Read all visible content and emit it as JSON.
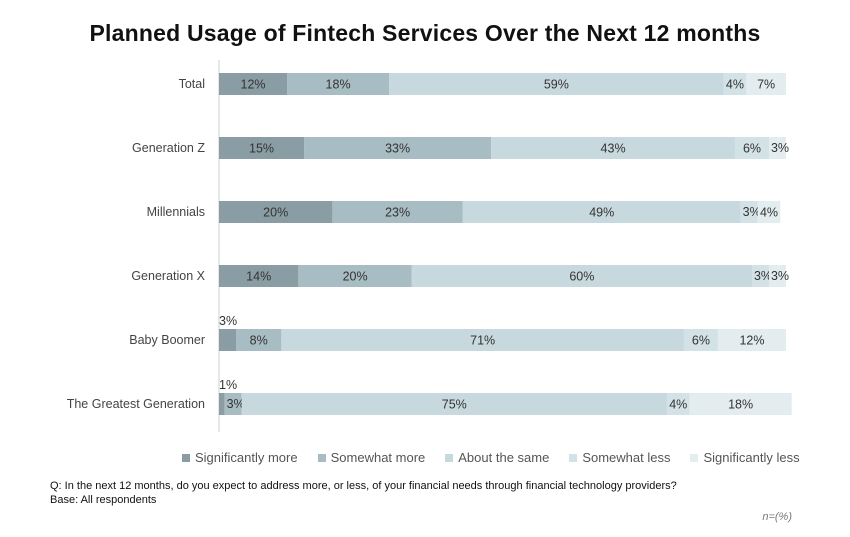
{
  "chart_data": {
    "type": "bar",
    "orientation": "horizontal",
    "stacked": true,
    "title": "Planned Usage of Fintech Services Over the Next 12 months",
    "categories": [
      "Total",
      "Generation Z",
      "Millennials",
      "Generation X",
      "Baby Boomer",
      "The Greatest Generation"
    ],
    "series": [
      {
        "name": "Significantly more",
        "color": "#8a9da4",
        "values": [
          12,
          15,
          20,
          14,
          3,
          1
        ]
      },
      {
        "name": "Somewhat more",
        "color": "#a8bcc3",
        "values": [
          18,
          33,
          23,
          20,
          8,
          3
        ]
      },
      {
        "name": "About the same",
        "color": "#c7d8de",
        "values": [
          59,
          43,
          49,
          60,
          71,
          75
        ]
      },
      {
        "name": "Somewhat less",
        "color": "#d3e2e7",
        "values": [
          4,
          6,
          3,
          3,
          6,
          4
        ]
      },
      {
        "name": "Significantly less",
        "color": "#e3ecef",
        "values": [
          7,
          3,
          4,
          3,
          12,
          18
        ]
      }
    ],
    "value_suffix": "%",
    "xlim": [
      0,
      100
    ],
    "grid": false,
    "legend_position": "bottom"
  },
  "footnote": {
    "question": "Q: In the next 12 months, do you expect to address more, or less, of your financial needs through financial technology providers?",
    "base": "Base: All respondents",
    "n": "n=(%)"
  }
}
